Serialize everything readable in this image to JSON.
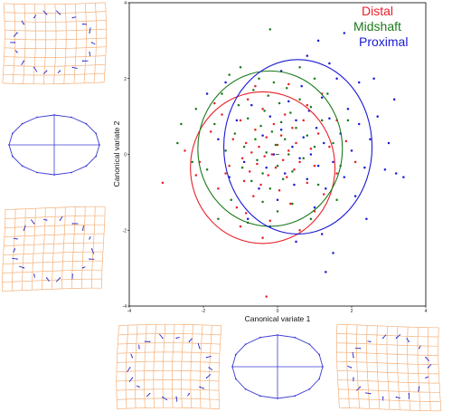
{
  "chart_data": {
    "type": "scatter",
    "xlabel": "Canonical variate 1",
    "ylabel": "Canonical variate 2",
    "xlim": [
      -4,
      4
    ],
    "ylim": [
      -4,
      4
    ],
    "x_ticks": [
      "-4",
      "-2",
      "0",
      "2",
      "4"
    ],
    "y_ticks": [
      "-4",
      "-2",
      "0",
      "2",
      "4"
    ],
    "grid": false,
    "legend_placement": "top-right",
    "series": [
      {
        "name": "Distal",
        "color": "#e8202a",
        "ellipse": {
          "center": [
            -0.4,
            -0.35
          ],
          "radii": [
            1.95,
            2.0
          ]
        },
        "points": [
          [
            -3.1,
            -0.75
          ],
          [
            -2.5,
            0.1
          ],
          [
            -2.1,
            -0.2
          ],
          [
            -1.8,
            0.6
          ],
          [
            -1.6,
            -0.9
          ],
          [
            -1.5,
            1.05
          ],
          [
            -1.3,
            -0.3
          ],
          [
            -1.2,
            0.4
          ],
          [
            -1.1,
            -1.4
          ],
          [
            -1.0,
            0.9
          ],
          [
            -0.95,
            -0.1
          ],
          [
            -0.9,
            -0.7
          ],
          [
            -0.85,
            0.3
          ],
          [
            -0.8,
            1.45
          ],
          [
            -0.75,
            -0.45
          ],
          [
            -0.7,
            0.05
          ],
          [
            -0.65,
            -1.1
          ],
          [
            -0.6,
            0.65
          ],
          [
            -0.55,
            -0.25
          ],
          [
            -0.5,
            0.2
          ],
          [
            -0.45,
            -0.8
          ],
          [
            -0.4,
            1.2
          ],
          [
            -0.35,
            -0.05
          ],
          [
            -0.3,
            0.45
          ],
          [
            -0.25,
            -0.55
          ],
          [
            -0.2,
            -1.75
          ],
          [
            -0.15,
            0.0
          ],
          [
            -0.1,
            0.8
          ],
          [
            -0.05,
            -0.35
          ],
          [
            0.0,
            0.25
          ],
          [
            0.05,
            -0.95
          ],
          [
            0.1,
            0.5
          ],
          [
            0.15,
            -0.15
          ],
          [
            0.2,
            1.05
          ],
          [
            0.25,
            -0.6
          ],
          [
            0.3,
            0.1
          ],
          [
            0.35,
            -1.3
          ],
          [
            0.4,
            0.7
          ],
          [
            0.45,
            -0.4
          ],
          [
            0.5,
            0.3
          ],
          [
            0.6,
            -0.2
          ],
          [
            0.7,
            0.9
          ],
          [
            0.8,
            -0.75
          ],
          [
            0.9,
            0.15
          ],
          [
            1.0,
            -0.3
          ],
          [
            1.1,
            0.55
          ],
          [
            1.25,
            -1.05
          ],
          [
            1.4,
            0.2
          ],
          [
            1.6,
            -0.5
          ],
          [
            1.85,
            0.35
          ],
          [
            -0.3,
            -3.75
          ],
          [
            -0.4,
            -2.2
          ],
          [
            0.6,
            -2.0
          ],
          [
            -1.0,
            -1.9
          ],
          [
            1.2,
            1.6
          ],
          [
            -1.7,
            1.35
          ],
          [
            2.1,
            -0.2
          ],
          [
            -0.85,
            -1.55
          ],
          [
            0.3,
            1.85
          ],
          [
            1.0,
            -1.5
          ],
          [
            -1.4,
            -0.5
          ],
          [
            -0.6,
            1.8
          ],
          [
            0.8,
            1.3
          ],
          [
            -2.2,
            -0.55
          ],
          [
            1.6,
            0.9
          ]
        ]
      },
      {
        "name": "Midshaft",
        "color": "#1b7a1b",
        "ellipse": {
          "center": [
            -0.2,
            0.15
          ],
          "radii": [
            1.95,
            2.05
          ]
        },
        "points": [
          [
            -2.7,
            0.3
          ],
          [
            -2.2,
            1.2
          ],
          [
            -1.9,
            -0.4
          ],
          [
            -1.7,
            0.8
          ],
          [
            -1.5,
            1.6
          ],
          [
            -1.4,
            0.1
          ],
          [
            -1.25,
            -1.2
          ],
          [
            -1.15,
            0.55
          ],
          [
            -1.05,
            1.3
          ],
          [
            -0.95,
            -0.35
          ],
          [
            -0.9,
            0.2
          ],
          [
            -0.8,
            0.95
          ],
          [
            -0.7,
            -0.7
          ],
          [
            -0.65,
            1.7
          ],
          [
            -0.6,
            0.4
          ],
          [
            -0.55,
            -0.15
          ],
          [
            -0.5,
            2.0
          ],
          [
            -0.45,
            0.75
          ],
          [
            -0.4,
            -0.5
          ],
          [
            -0.35,
            1.15
          ],
          [
            -0.3,
            0.05
          ],
          [
            -0.25,
            1.55
          ],
          [
            -0.2,
            -0.9
          ],
          [
            -0.15,
            0.6
          ],
          [
            -0.1,
            1.9
          ],
          [
            -0.05,
            0.25
          ],
          [
            0.0,
            -0.3
          ],
          [
            0.05,
            1.35
          ],
          [
            0.1,
            0.85
          ],
          [
            0.15,
            -0.65
          ],
          [
            0.2,
            0.4
          ],
          [
            0.25,
            1.75
          ],
          [
            0.3,
            0.0
          ],
          [
            0.35,
            1.1
          ],
          [
            0.4,
            -0.45
          ],
          [
            0.5,
            0.7
          ],
          [
            0.6,
            1.45
          ],
          [
            0.7,
            -0.1
          ],
          [
            0.8,
            0.5
          ],
          [
            0.9,
            1.25
          ],
          [
            1.0,
            0.2
          ],
          [
            1.1,
            -0.8
          ],
          [
            1.2,
            0.9
          ],
          [
            1.35,
            1.6
          ],
          [
            1.5,
            0.3
          ],
          [
            1.7,
            -0.3
          ],
          [
            -0.2,
            3.3
          ],
          [
            -1.0,
            2.3
          ],
          [
            0.6,
            2.3
          ],
          [
            -2.3,
            -0.2
          ],
          [
            1.9,
            0.9
          ],
          [
            -1.6,
            -1.7
          ],
          [
            0.0,
            -1.5
          ],
          [
            -0.8,
            -1.8
          ],
          [
            1.0,
            2.0
          ],
          [
            -2.6,
            0.8
          ],
          [
            0.4,
            -1.3
          ],
          [
            1.6,
            -1.2
          ],
          [
            -1.3,
            2.1
          ],
          [
            0.9,
            -1.7
          ],
          [
            -0.4,
            -1.25
          ]
        ]
      },
      {
        "name": "Proximal",
        "color": "#1a1ad6",
        "ellipse": {
          "center": [
            0.55,
            0.2
          ],
          "radii": [
            2.0,
            2.3
          ]
        },
        "points": [
          [
            -1.6,
            0.4
          ],
          [
            -1.3,
            -0.6
          ],
          [
            -1.1,
            0.9
          ],
          [
            -0.9,
            -0.2
          ],
          [
            -0.7,
            1.3
          ],
          [
            -0.5,
            -0.9
          ],
          [
            -0.4,
            0.5
          ],
          [
            -0.3,
            -0.35
          ],
          [
            -0.2,
            1.0
          ],
          [
            -0.1,
            0.0
          ],
          [
            0.0,
            -1.2
          ],
          [
            0.1,
            0.65
          ],
          [
            0.2,
            -0.5
          ],
          [
            0.3,
            1.4
          ],
          [
            0.4,
            0.2
          ],
          [
            0.45,
            -0.8
          ],
          [
            0.5,
            0.9
          ],
          [
            0.6,
            -0.1
          ],
          [
            0.65,
            1.8
          ],
          [
            0.7,
            0.45
          ],
          [
            0.8,
            -0.65
          ],
          [
            0.85,
            1.15
          ],
          [
            0.9,
            0.0
          ],
          [
            1.0,
            -1.4
          ],
          [
            1.05,
            0.7
          ],
          [
            1.1,
            -0.3
          ],
          [
            1.2,
            1.5
          ],
          [
            1.25,
            0.3
          ],
          [
            1.3,
            -0.9
          ],
          [
            1.4,
            0.95
          ],
          [
            1.5,
            -0.2
          ],
          [
            1.6,
            2.0
          ],
          [
            1.7,
            0.55
          ],
          [
            1.8,
            -0.6
          ],
          [
            1.9,
            1.2
          ],
          [
            2.0,
            0.1
          ],
          [
            2.1,
            -1.1
          ],
          [
            2.2,
            0.8
          ],
          [
            2.35,
            -0.35
          ],
          [
            2.5,
            0.4
          ],
          [
            2.7,
            1.0
          ],
          [
            2.9,
            -0.4
          ],
          [
            3.15,
            1.45
          ],
          [
            3.2,
            -0.5
          ],
          [
            1.1,
            3.0
          ],
          [
            1.8,
            3.2
          ],
          [
            1.4,
            2.4
          ],
          [
            0.8,
            2.6
          ],
          [
            2.6,
            2.0
          ],
          [
            2.4,
            -1.7
          ],
          [
            1.2,
            -2.1
          ],
          [
            -0.2,
            -1.9
          ],
          [
            0.5,
            -2.3
          ],
          [
            3.0,
            0.3
          ],
          [
            -1.9,
            1.6
          ],
          [
            -0.8,
            -1.7
          ],
          [
            1.5,
            -2.6
          ],
          [
            1.3,
            -3.1
          ],
          [
            3.4,
            -0.6
          ],
          [
            0.1,
            2.2
          ],
          [
            2.2,
            1.9
          ],
          [
            -1.4,
            1.9
          ]
        ]
      }
    ]
  },
  "legend": {
    "items": [
      {
        "label": "Distal",
        "color": "#e8202a"
      },
      {
        "label": "Midshaft",
        "color": "#1b7a1b"
      },
      {
        "label": "Proximal",
        "color": "#1a1ad6"
      }
    ]
  },
  "deformation_panels": [
    {
      "type": "grid",
      "icon": "deformation-grid-top-left"
    },
    {
      "type": "ellipse",
      "icon": "mean-shape-ellipse-left"
    },
    {
      "type": "grid",
      "icon": "deformation-grid-mid-left"
    },
    {
      "type": "grid",
      "icon": "deformation-grid-bottom-left"
    },
    {
      "type": "ellipse",
      "icon": "mean-shape-ellipse-bottom"
    },
    {
      "type": "grid",
      "icon": "deformation-grid-bottom-right"
    }
  ],
  "colors": {
    "grid_lines": "#f4b07a",
    "landmark_vectors": "#2a2ad0",
    "outline": "#3a3ad6",
    "frame": "#000000"
  }
}
